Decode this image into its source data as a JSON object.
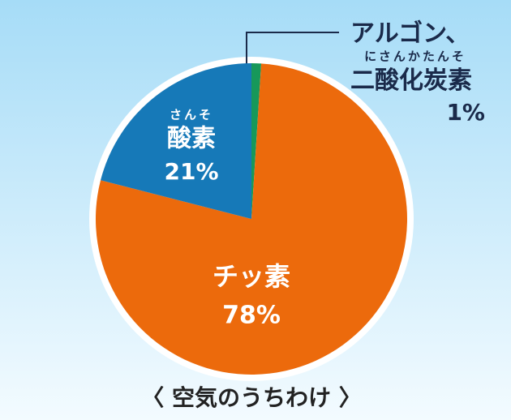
{
  "chart_data": {
    "type": "pie",
    "title": "〈 空気のうちわけ 〉",
    "categories": [
      "アルゴン、二酸化炭素",
      "チッ素",
      "酸素"
    ],
    "readings": [
      "にさんかたんそ",
      null,
      "さんそ"
    ],
    "values": [
      1,
      78,
      21
    ],
    "value_labels": [
      "1%",
      "78%",
      "21%"
    ],
    "colors": [
      "#17985a",
      "#ec6a0c",
      "#1679b8"
    ]
  }
}
